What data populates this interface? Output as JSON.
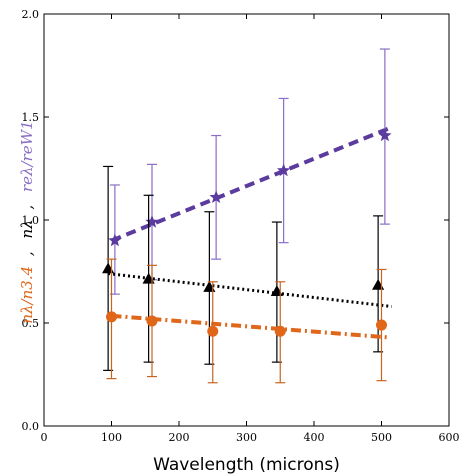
{
  "chart_data": {
    "type": "scatter",
    "xlabel": "Wavelength (microns)",
    "ylabel_parts": [
      {
        "text": "nλ/n3.4",
        "color": "#e0661a"
      },
      {
        "text": ",",
        "color": "#000000"
      },
      {
        "text": "nλ",
        "color": "#000000"
      },
      {
        "text": ",",
        "color": "#000000"
      },
      {
        "text": "reλ/reW1",
        "color": "#8a6fc6"
      }
    ],
    "xlim": [
      0,
      600
    ],
    "ylim": [
      0.0,
      2.0
    ],
    "xticks": [
      0,
      100,
      200,
      300,
      400,
      500,
      600
    ],
    "yticks": [
      0.0,
      0.5,
      1.0,
      1.5,
      2.0
    ],
    "x_tick_labels": [
      "0",
      "100",
      "200",
      "300",
      "400",
      "500",
      "600"
    ],
    "y_tick_labels": [
      "0.0",
      "0.5",
      "1.0",
      "1.5",
      "2.0"
    ],
    "series": [
      {
        "marker": "star",
        "color": "#5b3b9e",
        "errcolor": "#8a6fc6",
        "x": [
          105,
          160,
          255,
          355,
          505
        ],
        "y": [
          0.9,
          0.99,
          1.11,
          1.24,
          1.41
        ],
        "yerr_low": [
          0.64,
          0.71,
          0.81,
          0.89,
          0.98
        ],
        "yerr_high": [
          1.17,
          1.27,
          1.41,
          1.59,
          1.83
        ],
        "fit": {
          "style": "dashed",
          "x": [
            100,
            515
          ],
          "y": [
            0.9,
            1.45
          ]
        }
      },
      {
        "marker": "triangle",
        "color": "#000000",
        "errcolor": "#000000",
        "x": [
          95,
          155,
          245,
          345,
          495
        ],
        "y": [
          0.76,
          0.71,
          0.67,
          0.65,
          0.68
        ],
        "yerr_low": [
          0.27,
          0.31,
          0.3,
          0.31,
          0.36
        ],
        "yerr_high": [
          1.26,
          1.12,
          1.04,
          0.99,
          1.02
        ],
        "fit": {
          "style": "dotted",
          "x": [
            95,
            515
          ],
          "y": [
            0.74,
            0.58
          ]
        }
      },
      {
        "marker": "circle",
        "color": "#e0661a",
        "errcolor": "#c8641e",
        "x": [
          100,
          160,
          250,
          350,
          500
        ],
        "y": [
          0.53,
          0.51,
          0.46,
          0.46,
          0.49
        ],
        "yerr_low": [
          0.23,
          0.24,
          0.21,
          0.21,
          0.22
        ],
        "yerr_high": [
          0.81,
          0.78,
          0.7,
          0.7,
          0.76
        ],
        "fit": {
          "style": "dashdot",
          "x": [
            100,
            510
          ],
          "y": [
            0.535,
            0.43
          ]
        }
      }
    ]
  }
}
